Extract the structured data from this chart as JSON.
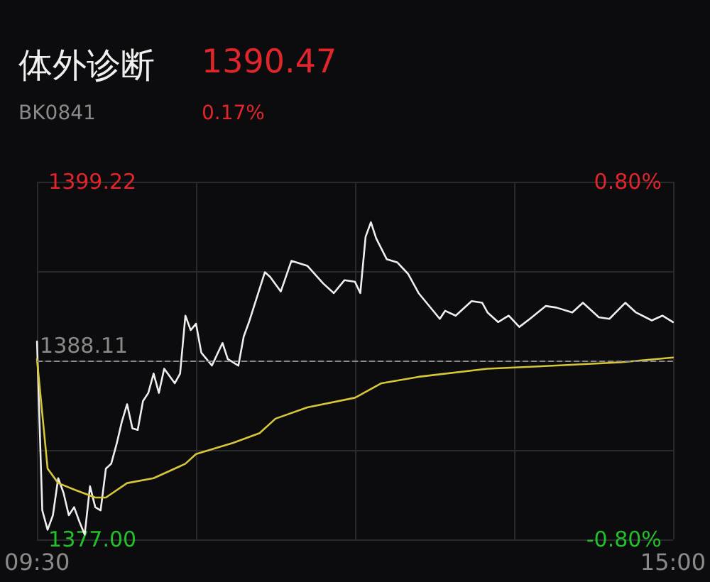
{
  "chart_data": {
    "type": "line",
    "title": "体外诊断",
    "subtitle": "BK0841",
    "annotations": [
      "1390.47",
      "0.17%"
    ],
    "categories": [
      "09:30",
      null,
      null,
      null,
      null,
      null,
      null,
      null,
      null,
      null,
      null,
      null,
      null,
      null,
      null,
      null,
      null,
      null,
      null,
      null,
      null,
      null,
      null,
      null,
      null,
      null,
      null,
      null,
      null,
      null,
      null,
      null,
      null,
      null,
      null,
      null,
      null,
      null,
      null,
      null,
      null,
      null,
      null,
      null,
      null,
      null,
      null,
      null,
      null,
      null,
      null,
      null,
      null,
      null,
      null,
      null,
      null,
      null,
      null,
      null,
      null,
      null,
      null,
      null,
      null,
      null,
      null,
      null,
      null,
      null,
      null,
      null,
      null,
      null,
      null,
      null,
      null,
      null,
      null,
      null,
      null,
      null,
      null,
      null,
      null,
      null,
      null,
      null,
      null,
      null,
      null,
      null,
      null,
      null,
      null,
      null,
      null,
      null,
      null,
      null,
      null,
      null,
      null,
      null,
      null,
      null,
      null,
      null,
      null,
      null,
      null,
      null,
      null,
      null,
      null,
      null,
      null,
      null,
      null,
      null,
      "15:00"
    ],
    "ylim": [
      1377.0,
      1399.22
    ],
    "yticks": [
      {
        "value": 1377.0,
        "label": "1377.00"
      },
      {
        "value": 1382.555,
        "label": null
      },
      {
        "value": 1393.665,
        "label": null
      },
      {
        "value": 1399.22,
        "label": "1399.22"
      }
    ],
    "y2lim": [
      -0.8,
      0.8
    ],
    "y2ticks": [
      {
        "value": -0.8,
        "label": "-0.80%"
      },
      {
        "value": 0.8,
        "label": "0.80%"
      }
    ],
    "ref_lines": [
      {
        "axis": "y",
        "value": 1388.11,
        "label": "1388.11",
        "color": "#8a8a8a",
        "line_style": "dashed"
      }
    ],
    "grid": true,
    "marker": "none",
    "line_style": "solid",
    "series": [
      {
        "color": "#eeeeee",
        "values": [
          1389.3,
          1378.8,
          1377.6,
          1378.5,
          1380.8,
          1379.9,
          1378.5,
          1379.0,
          1378.1,
          1377.3,
          1380.3,
          1379.0,
          1378.8,
          1381.4,
          1381.7,
          1382.9,
          1384.3,
          1385.4,
          1383.9,
          1383.8,
          1385.6,
          1386.1,
          1387.3,
          1386.1,
          1387.6,
          null,
          1386.7,
          1387.3,
          1390.9,
          1390.0,
          1390.4,
          1388.6,
          null,
          1387.8,
          null,
          1389.2,
          1388.2,
          null,
          1387.8,
          1389.6,
          1390.5,
          null,
          null,
          1393.6,
          1393.3,
          null,
          1392.4,
          null,
          1394.3,
          null,
          null,
          1394.0,
          null,
          null,
          1392.9,
          null,
          1392.3,
          null,
          1393.1,
          null,
          1393.0,
          1392.3,
          1395.8,
          1396.7,
          1395.7,
          null,
          1394.4,
          null,
          1394.2,
          null,
          1393.5,
          null,
          1392.3,
          null,
          null,
          null,
          1390.7,
          1391.2,
          null,
          1390.9,
          null,
          null,
          1391.8,
          null,
          1391.7,
          1391.1,
          null,
          1390.5,
          null,
          1390.9,
          null,
          1390.2,
          null,
          1390.7,
          null,
          null,
          1391.5,
          null,
          1391.4,
          null,
          null,
          1391.1,
          null,
          1391.7,
          null,
          null,
          1390.8,
          null,
          1390.7,
          null,
          null,
          1391.7,
          null,
          1391.1,
          null,
          null,
          1390.6,
          null,
          1390.9,
          null,
          1390.5
        ]
      },
      {
        "color": "#d8c63a",
        "values": [
          1388.2,
          null,
          1381.4,
          null,
          1380.5,
          null,
          null,
          1380.1,
          null,
          null,
          null,
          1379.6,
          null,
          1379.6,
          null,
          null,
          null,
          1380.5,
          null,
          null,
          null,
          null,
          1380.8,
          null,
          null,
          null,
          null,
          null,
          1381.7,
          null,
          1382.3,
          null,
          null,
          null,
          null,
          null,
          null,
          1383.0,
          null,
          null,
          null,
          null,
          1383.6,
          null,
          null,
          1384.5,
          null,
          null,
          null,
          null,
          null,
          1385.2,
          null,
          null,
          null,
          null,
          null,
          null,
          null,
          null,
          1385.8,
          null,
          null,
          null,
          null,
          1386.7,
          null,
          null,
          null,
          null,
          null,
          null,
          1387.1,
          null,
          null,
          null,
          null,
          null,
          null,
          null,
          null,
          null,
          null,
          null,
          null,
          1387.6,
          null,
          null,
          null,
          null,
          null,
          null,
          null,
          null,
          null,
          null,
          null,
          null,
          1387.8,
          null,
          null,
          null,
          null,
          null,
          null,
          null,
          null,
          null,
          null,
          null,
          1388.0,
          null,
          null,
          null,
          null,
          null,
          null,
          null,
          null,
          null,
          1388.3
        ]
      }
    ]
  }
}
